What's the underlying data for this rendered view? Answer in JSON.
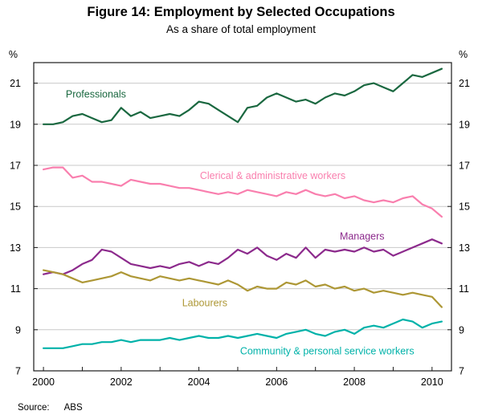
{
  "figure": {
    "title": "Figure 14: Employment by Selected Occupations",
    "subtitle": "As a share of total employment",
    "unit_left": "%",
    "unit_right": "%",
    "source_label": "Source:",
    "source_value": "ABS"
  },
  "colors": {
    "grid": "#c9c9c9",
    "axis": "#1a1a1a",
    "tick_text": "#000000"
  },
  "chart_data": {
    "type": "line",
    "title": "Figure 14: Employment by Selected Occupations",
    "subtitle": "As a share of total employment",
    "xlabel": "",
    "ylabel": "%",
    "xlim": [
      1999.75,
      2010.5
    ],
    "ylim": [
      7,
      22
    ],
    "x_ticks": [
      2000,
      2002,
      2004,
      2006,
      2008,
      2010
    ],
    "x_minor_ticks": [
      2000,
      2001,
      2002,
      2003,
      2004,
      2005,
      2006,
      2007,
      2008,
      2009,
      2010
    ],
    "y_ticks": [
      7,
      9,
      11,
      13,
      15,
      17,
      19,
      21
    ],
    "grid": "horizontal",
    "legend_position": "inline-annotations",
    "x_start": 2000.0,
    "x_step": 0.25,
    "series": [
      {
        "name": "Professionals",
        "color": "#1a6840",
        "label_x": 2001.35,
        "label_y": 20.45,
        "values": [
          19.0,
          19.0,
          19.1,
          19.4,
          19.5,
          19.3,
          19.1,
          19.2,
          19.8,
          19.4,
          19.6,
          19.3,
          19.4,
          19.5,
          19.4,
          19.7,
          20.1,
          20.0,
          19.7,
          19.4,
          19.1,
          19.8,
          19.9,
          20.3,
          20.5,
          20.3,
          20.1,
          20.2,
          20.0,
          20.3,
          20.5,
          20.4,
          20.6,
          20.9,
          21.0,
          20.8,
          20.6,
          21.0,
          21.4,
          21.3,
          21.5,
          21.7
        ]
      },
      {
        "name": "Clerical & administrative workers",
        "color": "#f97fae",
        "label_x": 2005.9,
        "label_y": 16.5,
        "values": [
          16.8,
          16.9,
          16.9,
          16.4,
          16.5,
          16.2,
          16.2,
          16.1,
          16.0,
          16.3,
          16.2,
          16.1,
          16.1,
          16.0,
          15.9,
          15.9,
          15.8,
          15.7,
          15.6,
          15.7,
          15.6,
          15.8,
          15.7,
          15.6,
          15.5,
          15.7,
          15.6,
          15.8,
          15.6,
          15.5,
          15.6,
          15.4,
          15.5,
          15.3,
          15.2,
          15.3,
          15.2,
          15.4,
          15.5,
          15.1,
          14.9,
          14.5
        ]
      },
      {
        "name": "Managers",
        "color": "#8c2a8c",
        "label_x": 2008.2,
        "label_y": 13.55,
        "values": [
          11.7,
          11.8,
          11.7,
          11.9,
          12.2,
          12.4,
          12.9,
          12.8,
          12.5,
          12.2,
          12.1,
          12.0,
          12.1,
          12.0,
          12.2,
          12.3,
          12.1,
          12.3,
          12.2,
          12.5,
          12.9,
          12.7,
          13.0,
          12.6,
          12.4,
          12.7,
          12.5,
          13.0,
          12.5,
          12.9,
          12.8,
          12.9,
          12.8,
          13.0,
          12.8,
          12.9,
          12.6,
          12.8,
          13.0,
          13.2,
          13.4,
          13.2
        ]
      },
      {
        "name": "Labourers",
        "color": "#ad9735",
        "label_x": 2004.15,
        "label_y": 10.3,
        "values": [
          11.9,
          11.8,
          11.7,
          11.5,
          11.3,
          11.4,
          11.5,
          11.6,
          11.8,
          11.6,
          11.5,
          11.4,
          11.6,
          11.5,
          11.4,
          11.5,
          11.4,
          11.3,
          11.2,
          11.4,
          11.2,
          10.9,
          11.1,
          11.0,
          11.0,
          11.3,
          11.2,
          11.4,
          11.1,
          11.2,
          11.0,
          11.1,
          10.9,
          11.0,
          10.8,
          10.9,
          10.8,
          10.7,
          10.8,
          10.7,
          10.6,
          10.1
        ]
      },
      {
        "name": "Community & personal service workers",
        "color": "#00b2a9",
        "label_x": 2007.3,
        "label_y": 7.95,
        "values": [
          8.1,
          8.1,
          8.1,
          8.2,
          8.3,
          8.3,
          8.4,
          8.4,
          8.5,
          8.4,
          8.5,
          8.5,
          8.5,
          8.6,
          8.5,
          8.6,
          8.7,
          8.6,
          8.6,
          8.7,
          8.6,
          8.7,
          8.8,
          8.7,
          8.6,
          8.8,
          8.9,
          9.0,
          8.8,
          8.7,
          8.9,
          9.0,
          8.8,
          9.1,
          9.2,
          9.1,
          9.3,
          9.5,
          9.4,
          9.1,
          9.3,
          9.4
        ]
      }
    ]
  }
}
